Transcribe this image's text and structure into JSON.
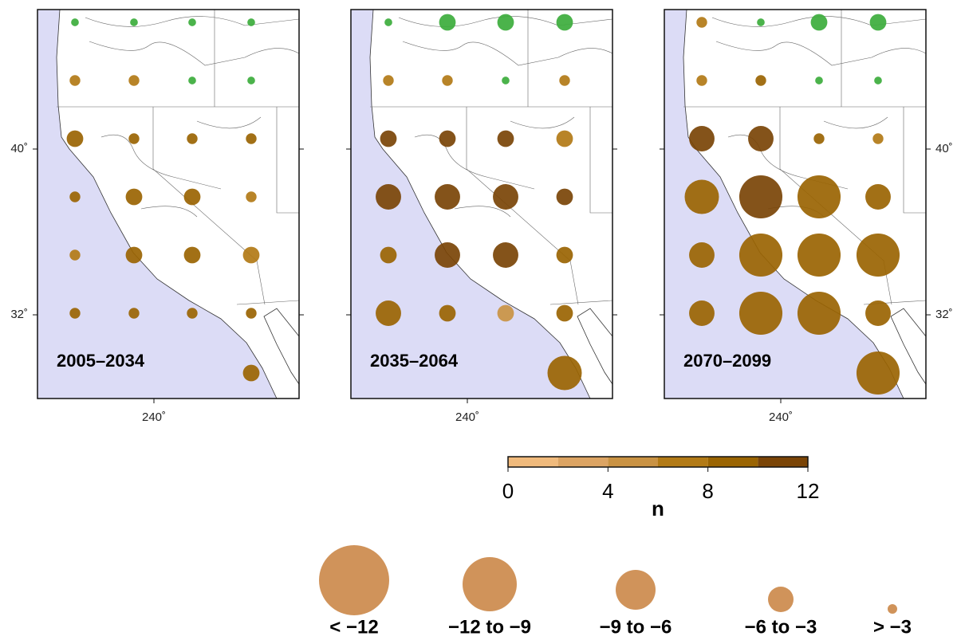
{
  "panels": [
    {
      "label": "2005–2034",
      "change": [
        [
          1,
          1,
          1,
          1
        ],
        [
          -2,
          -2,
          1,
          1
        ],
        [
          -4,
          -2,
          -2,
          -2
        ],
        [
          -2,
          -4,
          -4,
          -2
        ],
        [
          -2,
          -4,
          -4,
          -4
        ],
        [
          -2,
          -2,
          -2,
          -2
        ],
        [
          null,
          null,
          null,
          -4
        ]
      ],
      "n": [
        [
          null,
          null,
          null,
          null
        ],
        [
          6,
          6,
          null,
          null
        ],
        [
          8,
          8,
          8,
          8
        ],
        [
          8,
          8,
          8,
          7
        ],
        [
          6,
          9,
          8,
          6
        ],
        [
          8,
          8,
          8,
          8
        ],
        [
          null,
          null,
          null,
          9
        ]
      ]
    },
    {
      "label": "2035–2064",
      "change": [
        [
          1,
          4,
          4,
          4
        ],
        [
          -2,
          -2,
          1,
          -2
        ],
        [
          -4,
          -4,
          -4,
          -4
        ],
        [
          -7,
          -7,
          -7,
          -4
        ],
        [
          -4,
          -7,
          -7,
          -4
        ],
        [
          -7,
          -4,
          -4,
          -4
        ],
        [
          null,
          null,
          null,
          -10
        ]
      ],
      "n": [
        [
          null,
          null,
          null,
          null
        ],
        [
          6,
          6,
          null,
          6
        ],
        [
          10,
          11,
          10,
          7
        ],
        [
          11,
          11,
          11,
          11
        ],
        [
          8,
          11,
          11,
          9
        ],
        [
          8,
          8,
          5,
          8
        ],
        [
          null,
          null,
          null,
          8
        ]
      ]
    },
    {
      "label": "2070–2099",
      "change": [
        [
          -2,
          1,
          4,
          4
        ],
        [
          -2,
          -2,
          1,
          1
        ],
        [
          -7,
          -7,
          -2,
          -2
        ],
        [
          -10,
          -13,
          -13,
          -7
        ],
        [
          -7,
          -13,
          -13,
          -13
        ],
        [
          -7,
          -13,
          -13,
          -7
        ],
        [
          null,
          null,
          null,
          -13
        ]
      ],
      "n": [
        [
          6,
          null,
          null,
          null
        ],
        [
          6,
          8,
          null,
          null
        ],
        [
          11,
          11,
          8,
          6
        ],
        [
          8,
          11,
          8,
          8
        ],
        [
          8,
          8,
          8,
          8
        ],
        [
          8,
          8,
          8,
          8
        ],
        [
          null,
          null,
          null,
          8
        ]
      ]
    }
  ],
  "increase_color": "#3cac3c",
  "lat_ticks": [
    {
      "value": 40,
      "label": "40˚"
    },
    {
      "value": 32,
      "label": "32˚"
    }
  ],
  "lon_ticks": [
    {
      "value": 240,
      "label": "240˚"
    }
  ],
  "colorbar": {
    "title": "n",
    "range": [
      0,
      12
    ],
    "ticks": [
      0,
      4,
      8,
      12
    ],
    "colors": [
      "#f0ba7c",
      "#dca463",
      "#c99243",
      "#b27a16",
      "#9a6402",
      "#7a4406"
    ]
  },
  "size_legend": {
    "color": "#d0935a",
    "labels": [
      "< −12",
      "−12 to −9",
      "−9 to −6",
      "−6 to −3",
      "> −3"
    ]
  }
}
